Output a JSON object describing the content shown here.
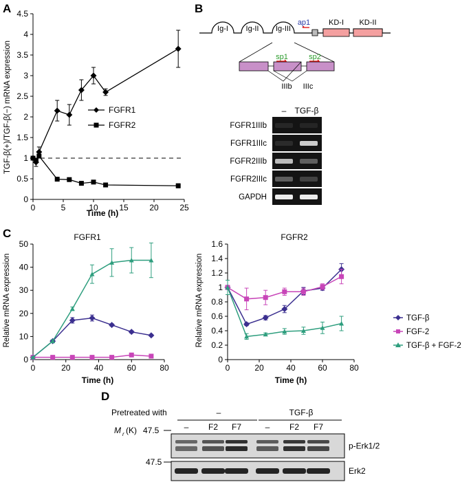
{
  "panels": {
    "A": "A",
    "B": "B",
    "C": "C",
    "D": "D"
  },
  "colors": {
    "tgf": "#3b2f8f",
    "fgf2": "#c845b8",
    "combo": "#2e9e7e",
    "gel_bg": "#141414",
    "blot_bg": "#d8d8d8",
    "exon": "#c890c8",
    "kinase": "#f4a0a0"
  },
  "chart_data": [
    {
      "id": "A",
      "type": "line",
      "title": "",
      "xlabel": "Time (h)",
      "ylabel": "TGF-β(+)/TGF-β(−) mRNA expression",
      "xlim": [
        0,
        25
      ],
      "ylim": [
        0,
        4.5
      ],
      "xticks": [
        "0",
        "5",
        "10",
        "15",
        "20",
        "25"
      ],
      "yticks": [
        "0",
        "0.5",
        "1",
        "1.5",
        "2",
        "2.5",
        "3",
        "3.5",
        "4",
        "4.5"
      ],
      "reference_line": 1,
      "series": [
        {
          "name": "FGFR1",
          "marker": "diamond",
          "x": [
            0,
            0.5,
            1,
            4,
            6,
            8,
            10,
            12,
            24
          ],
          "y": [
            1,
            0.9,
            1.15,
            2.15,
            2.05,
            2.65,
            3.0,
            2.6,
            3.65
          ],
          "err": [
            0.05,
            0.1,
            0.12,
            0.25,
            0.25,
            0.25,
            0.2,
            0.08,
            0.45
          ]
        },
        {
          "name": "FGFR2",
          "marker": "square",
          "x": [
            0,
            0.5,
            1,
            4,
            6,
            8,
            10,
            12,
            24
          ],
          "y": [
            1,
            0.95,
            1.05,
            0.49,
            0.48,
            0.39,
            0.42,
            0.35,
            0.33
          ],
          "err": [
            0.03,
            0.04,
            0.05,
            0.04,
            0.04,
            0.03,
            0.03,
            0.02,
            0.05
          ]
        }
      ]
    },
    {
      "id": "C1",
      "type": "line",
      "title": "FGFR1",
      "xlabel": "Time (h)",
      "ylabel": "Relative mRNA expression",
      "xlim": [
        0,
        80
      ],
      "ylim": [
        0,
        50
      ],
      "xticks": [
        "0",
        "20",
        "40",
        "60",
        "80"
      ],
      "yticks": [
        "0",
        "10",
        "20",
        "30",
        "40",
        "50"
      ],
      "series": [
        {
          "name": "TGF-β",
          "x": [
            0,
            12,
            24,
            36,
            48,
            60,
            72
          ],
          "y": [
            1,
            8,
            17,
            18,
            15,
            12,
            10.5
          ],
          "err": [
            0.3,
            0.5,
            1.2,
            1.3,
            0.5,
            0.5,
            0.4
          ]
        },
        {
          "name": "FGF-2",
          "x": [
            0,
            12,
            24,
            36,
            48,
            60,
            72
          ],
          "y": [
            1,
            1,
            1,
            1,
            1,
            2,
            1.5
          ],
          "err": [
            0.2,
            0.2,
            0.2,
            0.2,
            0.2,
            0.3,
            0.3
          ]
        },
        {
          "name": "TGF-β + FGF-2",
          "x": [
            0,
            12,
            24,
            36,
            48,
            60,
            72
          ],
          "y": [
            1,
            8,
            22,
            37,
            42,
            43,
            43
          ],
          "err": [
            0.3,
            0.6,
            0.8,
            4,
            6,
            5.5,
            7.5
          ]
        }
      ]
    },
    {
      "id": "C2",
      "type": "line",
      "title": "FGFR2",
      "xlabel": "Time (h)",
      "ylabel": "Relative mRNA expression",
      "xlim": [
        0,
        80
      ],
      "ylim": [
        0,
        1.6
      ],
      "xticks": [
        "0",
        "20",
        "40",
        "60",
        "80"
      ],
      "yticks": [
        "0",
        "0.2",
        "0.4",
        "0.6",
        "0.8",
        "1",
        "1.2",
        "1.4",
        "1.6"
      ],
      "series": [
        {
          "name": "TGF-β",
          "x": [
            0,
            12,
            24,
            36,
            48,
            60,
            72
          ],
          "y": [
            1,
            0.49,
            0.58,
            0.7,
            0.95,
            0.99,
            1.25
          ],
          "err": [
            0.02,
            0.02,
            0.03,
            0.05,
            0.05,
            0.03,
            0.08
          ]
        },
        {
          "name": "FGF-2",
          "x": [
            0,
            12,
            24,
            36,
            48,
            60,
            72
          ],
          "y": [
            1,
            0.84,
            0.86,
            0.94,
            0.94,
            1.01,
            1.15
          ],
          "err": [
            0.03,
            0.15,
            0.1,
            0.05,
            0.05,
            0.04,
            0.1
          ]
        },
        {
          "name": "TGF-β + FGF-2",
          "x": [
            0,
            12,
            24,
            36,
            48,
            60,
            72
          ],
          "y": [
            1,
            0.32,
            0.35,
            0.39,
            0.4,
            0.44,
            0.5
          ],
          "err": [
            0.1,
            0.04,
            0.02,
            0.04,
            0.05,
            0.08,
            0.1
          ]
        }
      ]
    }
  ],
  "legend_c": [
    "TGF-β",
    "FGF-2",
    "TGF-β + FGF-2"
  ],
  "diagram_b": {
    "domains": [
      "Ig-I",
      "Ig-II",
      "Ig-III",
      "KD-I",
      "KD-II"
    ],
    "primers": {
      "ap1": "ap1",
      "sp1": "sp1",
      "sp2": "sp2"
    },
    "exons": {
      "b": "IIIb",
      "c": "IIIc"
    }
  },
  "gel_b": {
    "headers": [
      "–",
      "TGF-β"
    ],
    "rows": [
      {
        "label": "FGFR1IIIb",
        "bands": [
          0.12,
          0.1
        ]
      },
      {
        "label": "FGFR1IIIc",
        "bands": [
          0.15,
          0.85
        ]
      },
      {
        "label": "FGFR2IIIb",
        "bands": [
          0.8,
          0.45
        ]
      },
      {
        "label": "FGFR2IIIc",
        "bands": [
          0.45,
          0.3
        ]
      },
      {
        "label": "GAPDH",
        "bands": [
          0.95,
          0.95
        ]
      }
    ]
  },
  "blot_d": {
    "pretreated_label": "Pretreated with",
    "groups": [
      "–",
      "TGF-β"
    ],
    "lanes": [
      "–",
      "F2",
      "F7",
      "–",
      "F2",
      "F7"
    ],
    "mr_label_m": "M",
    "mr_label_r": "r",
    "mr_label_k": "(K)",
    "mr_value": "47.5",
    "mr_value2": "47.5",
    "rows": [
      {
        "label": "p-Erk1/2",
        "bands": [
          0.45,
          0.6,
          0.9,
          0.55,
          0.85,
          0.7
        ]
      },
      {
        "label": "Erk2",
        "bands": [
          0.95,
          0.95,
          0.95,
          0.95,
          0.95,
          0.95
        ]
      }
    ]
  }
}
